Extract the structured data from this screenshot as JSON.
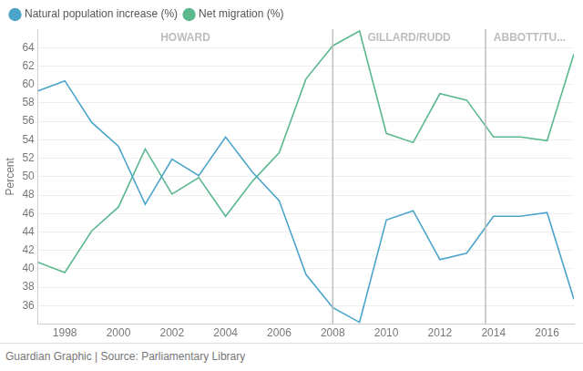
{
  "chart_data": {
    "type": "line",
    "y_label": "Percent",
    "source": "Guardian Graphic | Source: Parliamentary Library",
    "x": [
      1997,
      1998,
      1999,
      2000,
      2001,
      2002,
      2003,
      2004,
      2005,
      2006,
      2007,
      2008,
      2009,
      2010,
      2011,
      2012,
      2013,
      2014,
      2015,
      2016,
      2017
    ],
    "series": [
      {
        "name": "Natural population increase (%)",
        "color": "#4ba4c9",
        "values": [
          59.3,
          60.4,
          55.9,
          53.3,
          47.0,
          51.9,
          50.1,
          54.3,
          50.5,
          47.4,
          39.4,
          35.8,
          34.2,
          45.3,
          46.3,
          41.0,
          41.7,
          45.7,
          45.7,
          46.1,
          36.7
        ]
      },
      {
        "name": "Net migration (%)",
        "color": "#5cb88f",
        "values": [
          40.7,
          39.6,
          44.1,
          46.7,
          53.0,
          48.1,
          49.9,
          45.7,
          49.5,
          52.6,
          60.6,
          64.2,
          65.8,
          54.7,
          53.7,
          59.0,
          58.3,
          54.3,
          54.3,
          53.9,
          63.3
        ]
      }
    ],
    "xlim": [
      1997,
      2017
    ],
    "xticks": [
      1998,
      2000,
      2002,
      2004,
      2006,
      2008,
      2010,
      2012,
      2014,
      2016
    ],
    "ylim": [
      34,
      66
    ],
    "yticks": [
      36,
      38,
      40,
      42,
      44,
      46,
      48,
      50,
      52,
      54,
      56,
      58,
      60,
      62,
      64
    ],
    "grid": "y",
    "legend": "top-left",
    "periods": [
      {
        "label": "HOWARD",
        "start": 1997,
        "end": 2008
      },
      {
        "label": "GILLARD/RUDD",
        "start": 2008,
        "end": 2013.7
      },
      {
        "label": "ABBOTT/TU...",
        "start": 2013.7,
        "end": 2017
      }
    ]
  }
}
